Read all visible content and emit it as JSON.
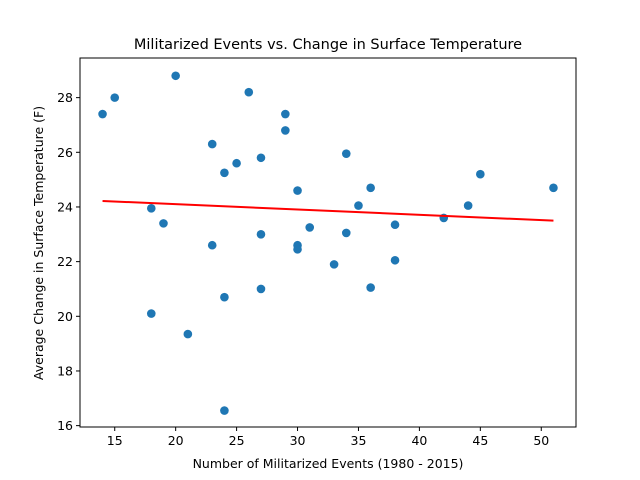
{
  "chart_data": {
    "type": "scatter",
    "title": "Militarized Events vs. Change in Surface Temperature",
    "xlabel": "Number of Militarized Events (1980 - 2015)",
    "ylabel": "Average Change in Surface Temperature (F)",
    "xlim": [
      12.15,
      52.85
    ],
    "ylim": [
      15.95,
      29.45
    ],
    "xticks": [
      15,
      20,
      25,
      30,
      35,
      40,
      45,
      50
    ],
    "yticks": [
      16,
      18,
      20,
      22,
      24,
      26,
      28
    ],
    "grid": false,
    "legend": "none",
    "point_color": "#1f77b4",
    "fit_line_color": "#ff0000",
    "points": [
      {
        "x": 14,
        "y": 27.4
      },
      {
        "x": 15,
        "y": 28.0
      },
      {
        "x": 18,
        "y": 23.95
      },
      {
        "x": 18,
        "y": 20.1
      },
      {
        "x": 19,
        "y": 23.4
      },
      {
        "x": 20,
        "y": 28.8
      },
      {
        "x": 21,
        "y": 19.35
      },
      {
        "x": 23,
        "y": 26.3
      },
      {
        "x": 23,
        "y": 22.6
      },
      {
        "x": 24,
        "y": 25.25
      },
      {
        "x": 24,
        "y": 20.7
      },
      {
        "x": 24,
        "y": 16.55
      },
      {
        "x": 25,
        "y": 25.6
      },
      {
        "x": 26,
        "y": 28.2
      },
      {
        "x": 27,
        "y": 25.8
      },
      {
        "x": 27,
        "y": 23.0
      },
      {
        "x": 27,
        "y": 21.0
      },
      {
        "x": 29,
        "y": 27.4
      },
      {
        "x": 29,
        "y": 26.8
      },
      {
        "x": 30,
        "y": 24.6
      },
      {
        "x": 30,
        "y": 22.6
      },
      {
        "x": 30,
        "y": 22.45
      },
      {
        "x": 31,
        "y": 23.25
      },
      {
        "x": 33,
        "y": 21.9
      },
      {
        "x": 34,
        "y": 25.95
      },
      {
        "x": 34,
        "y": 23.05
      },
      {
        "x": 35,
        "y": 24.05
      },
      {
        "x": 36,
        "y": 24.7
      },
      {
        "x": 36,
        "y": 21.05
      },
      {
        "x": 38,
        "y": 23.35
      },
      {
        "x": 38,
        "y": 22.05
      },
      {
        "x": 42,
        "y": 23.6
      },
      {
        "x": 44,
        "y": 24.05
      },
      {
        "x": 45,
        "y": 25.2
      },
      {
        "x": 51,
        "y": 24.7
      }
    ],
    "fit_line": [
      {
        "x": 14,
        "y": 24.22
      },
      {
        "x": 51,
        "y": 23.5
      }
    ]
  }
}
